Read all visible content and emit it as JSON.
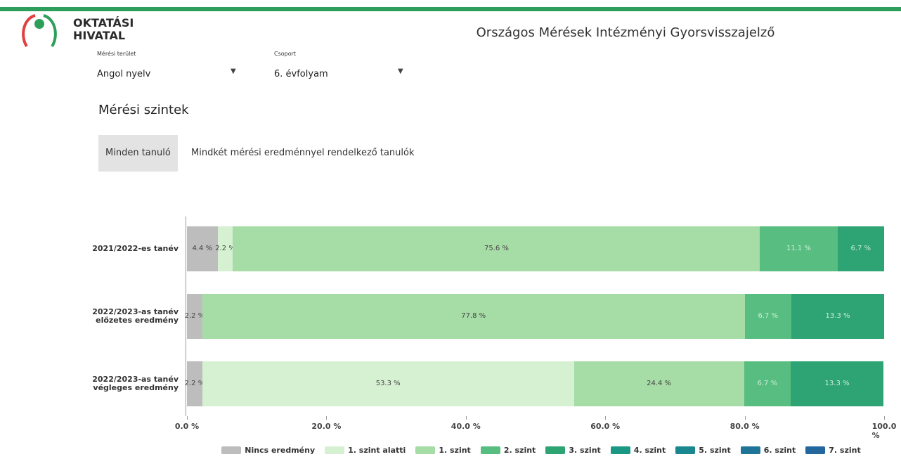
{
  "header": {
    "logo_line1": "OKTATÁSI",
    "logo_line2": "HIVATAL",
    "title": "Országos Mérések Intézményi Gyorsvisszajelző"
  },
  "filters": [
    {
      "label": "Mérési terület",
      "value": "Angol nyelv"
    },
    {
      "label": "Csoport",
      "value": "6. évfolyam"
    }
  ],
  "section_title": "Mérési szintek",
  "tabs": [
    "Minden tanuló",
    "Mindkét mérési eredménnyel rendelkező tanulók"
  ],
  "chart_data": {
    "type": "stacked_bar_horizontal",
    "categories": [
      "2021/2022-es tanév",
      "2022/2023-as tanév előzetes eredmény",
      "2022/2023-as tanév végleges eredmény"
    ],
    "series": [
      {
        "name": "Nincs eredmény",
        "color": "#bdbdbd",
        "values": [
          4.4,
          2.2,
          2.2
        ],
        "value_labels": [
          "4.4 %",
          "2.2 %",
          "2.2 %"
        ]
      },
      {
        "name": "1. szint alatti",
        "color": "#d6f0d2",
        "values": [
          2.2,
          null,
          53.3
        ],
        "value_labels": [
          "2.2 %",
          null,
          "53.3 %"
        ]
      },
      {
        "name": "1. szint",
        "color": "#a6dca6",
        "values": [
          75.6,
          77.8,
          24.4
        ],
        "value_labels": [
          "75.6 %",
          "77.8 %",
          "24.4 %"
        ]
      },
      {
        "name": "2. szint",
        "color": "#58bd80",
        "values": [
          11.1,
          6.7,
          6.7
        ],
        "value_labels": [
          "11.1 %",
          "6.7 %",
          "6.7 %"
        ]
      },
      {
        "name": "3. szint",
        "color": "#2ea474",
        "values": [
          6.7,
          13.3,
          13.3
        ],
        "value_labels": [
          "6.7 %",
          "13.3 %",
          "13.3 %"
        ]
      },
      {
        "name": "4. szint",
        "color": "#1a9884",
        "values": [
          null,
          null,
          null
        ]
      },
      {
        "name": "5. szint",
        "color": "#1a8790",
        "values": [
          null,
          null,
          null
        ]
      },
      {
        "name": "6. szint",
        "color": "#1f7597",
        "values": [
          null,
          null,
          null
        ]
      },
      {
        "name": "7. szint",
        "color": "#24679f",
        "values": [
          null,
          null,
          null
        ]
      }
    ],
    "xlim": [
      0,
      100
    ],
    "xticks": [
      {
        "value": 0,
        "label": "0.0 %"
      },
      {
        "value": 20,
        "label": "20.0 %"
      },
      {
        "value": 40,
        "label": "40.0 %"
      },
      {
        "value": 60,
        "label": "60.0 %"
      },
      {
        "value": 80,
        "label": "80.0 %"
      },
      {
        "value": 100,
        "label": "100.0 %"
      }
    ],
    "legend": "bottom"
  }
}
